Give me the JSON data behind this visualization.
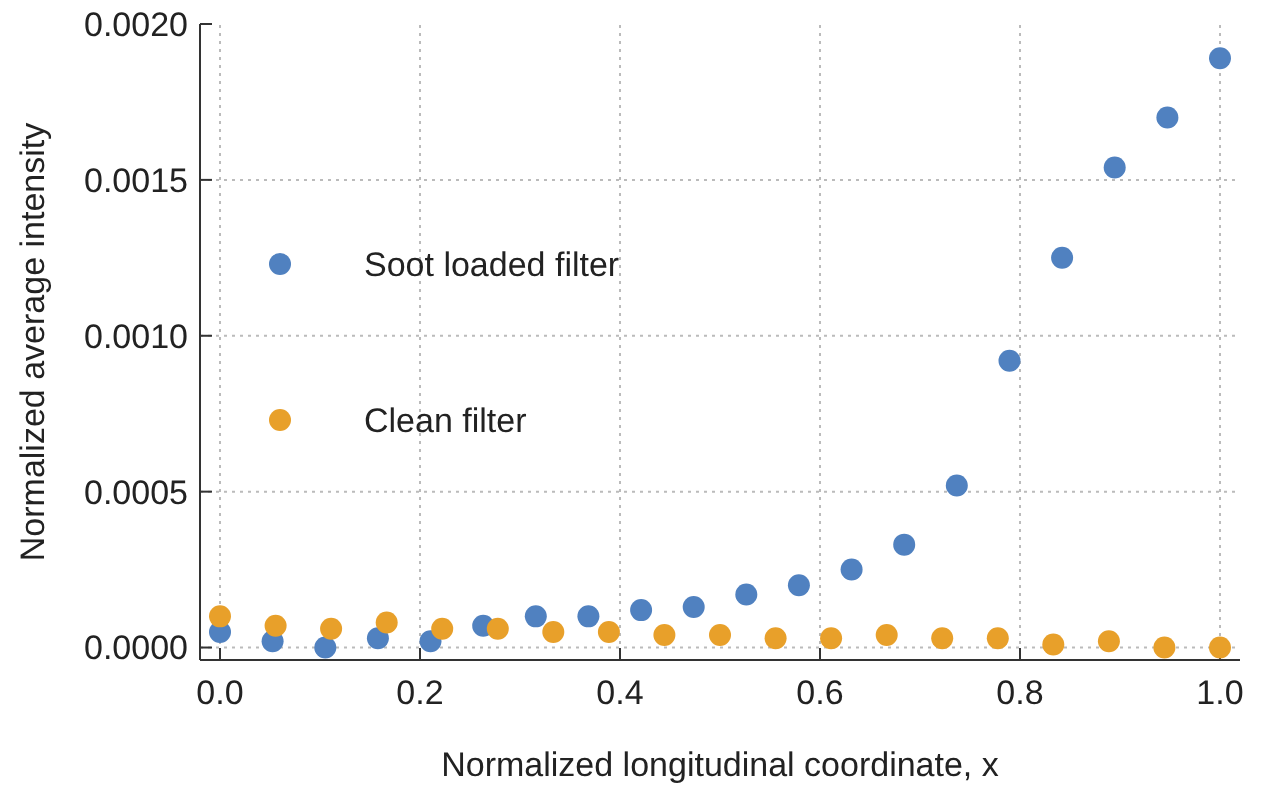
{
  "chart_data": {
    "type": "scatter",
    "xlabel": "Normalized longitudinal coordinate, x",
    "ylabel": "Normalized average intensity",
    "xlim": [
      -0.02,
      1.02
    ],
    "ylim": [
      -4e-05,
      0.002
    ],
    "xticks": [
      {
        "value": 0,
        "label": "0.0"
      },
      {
        "value": 0.2,
        "label": "0.2"
      },
      {
        "value": 0.4,
        "label": "0.4"
      },
      {
        "value": 0.6,
        "label": "0.6"
      },
      {
        "value": 0.8,
        "label": "0.8"
      },
      {
        "value": 1,
        "label": "1.0"
      }
    ],
    "yticks": [
      {
        "value": 0,
        "label": "0.0000"
      },
      {
        "value": 0.0005,
        "label": "0.0005"
      },
      {
        "value": 0.001,
        "label": "0.0010"
      },
      {
        "value": 0.0015,
        "label": "0.0015"
      },
      {
        "value": 0.002,
        "label": "0.0020"
      }
    ],
    "grid": true,
    "legend": "left",
    "marker": "circle",
    "series": [
      {
        "name": "Soot loaded filter",
        "color": "#5081c0",
        "x": [
          0,
          0.0526,
          0.1053,
          0.1579,
          0.2105,
          0.2632,
          0.3158,
          0.3684,
          0.4211,
          0.4737,
          0.5263,
          0.5789,
          0.6316,
          0.6842,
          0.7368,
          0.7895,
          0.8421,
          0.8947,
          0.9474,
          1
        ],
        "values": [
          5e-05,
          2e-05,
          0.0,
          3e-05,
          2e-05,
          7e-05,
          0.0001,
          0.0001,
          0.00012,
          0.00013,
          0.00017,
          0.0002,
          0.00025,
          0.00033,
          0.00052,
          0.00092,
          0.00125,
          0.00154,
          0.0017,
          0.00189
        ]
      },
      {
        "name": "Clean filter",
        "color": "#e8a02a",
        "x": [
          0,
          0.0556,
          0.1111,
          0.1667,
          0.2222,
          0.2778,
          0.3333,
          0.3889,
          0.4444,
          0.5,
          0.5556,
          0.6111,
          0.6667,
          0.7222,
          0.7778,
          0.8333,
          0.8889,
          0.9444,
          1
        ],
        "values": [
          0.0001,
          7e-05,
          6e-05,
          8e-05,
          6e-05,
          6e-05,
          5e-05,
          5e-05,
          4e-05,
          4e-05,
          3e-05,
          3e-05,
          4e-05,
          3e-05,
          3e-05,
          1e-05,
          2e-05,
          0.0,
          0.0
        ]
      }
    ]
  }
}
